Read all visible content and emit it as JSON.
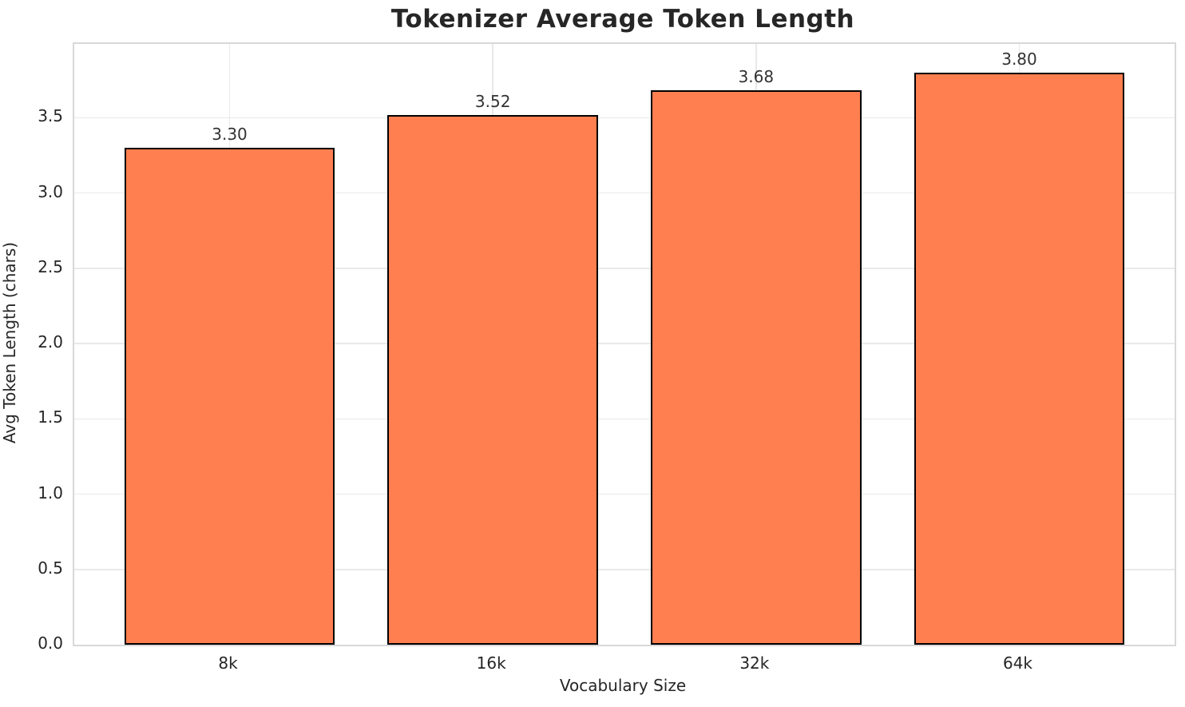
{
  "chart_data": {
    "type": "bar",
    "title": "Tokenizer Average Token Length",
    "xlabel": "Vocabulary Size",
    "ylabel": "Avg Token Length (chars)",
    "categories": [
      "8k",
      "16k",
      "32k",
      "64k"
    ],
    "values": [
      3.3,
      3.52,
      3.68,
      3.8
    ],
    "value_labels": [
      "3.30",
      "3.52",
      "3.68",
      "3.80"
    ],
    "ytick_values": [
      0.0,
      0.5,
      1.0,
      1.5,
      2.0,
      2.5,
      3.0,
      3.5
    ],
    "ytick_labels": [
      "0.0",
      "0.5",
      "1.0",
      "1.5",
      "2.0",
      "2.5",
      "3.0",
      "3.5"
    ],
    "ylim": [
      0,
      3.99
    ],
    "xlim": [
      -0.59,
      3.59
    ],
    "bar_width_data_units": 0.8,
    "grid": true,
    "legend": "none",
    "colors": {
      "bar_fill": "#FF7F50",
      "bar_edge": "#000000",
      "grid_line": "#E9E9E9",
      "spine": "#D8D8D8",
      "tick_text": "#262626",
      "value_text": "#333333",
      "title_text": "#262626",
      "background": "#FFFFFF"
    }
  }
}
